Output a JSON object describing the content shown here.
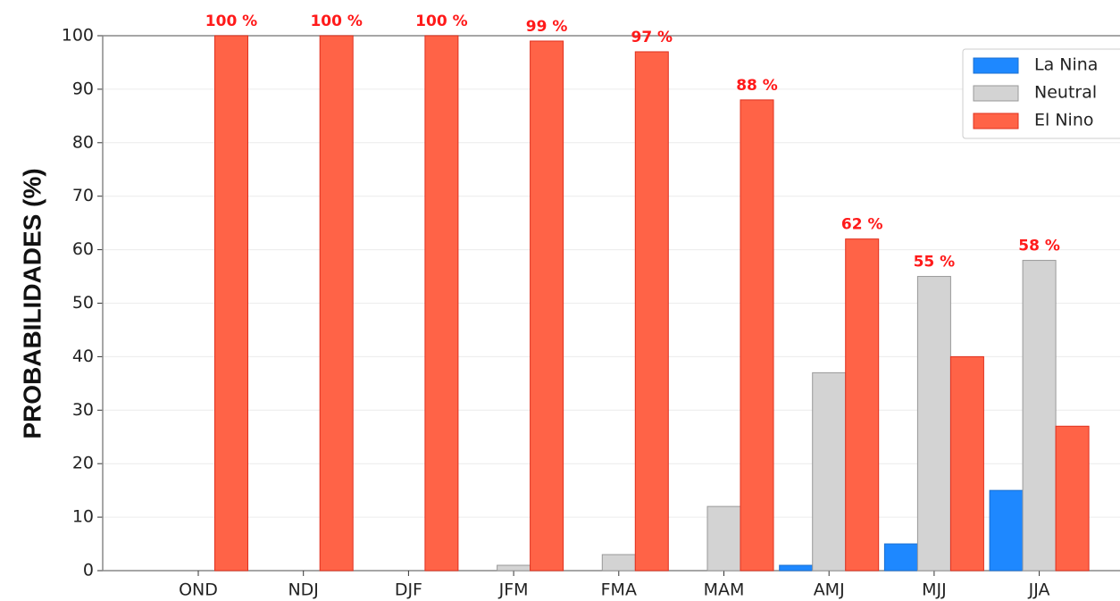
{
  "chart_data": {
    "type": "bar",
    "ylabel": "PROBABILIDADES (%)",
    "categories": [
      "OND",
      "NDJ",
      "DJF",
      "JFM",
      "FMA",
      "MAM",
      "AMJ",
      "MJJ",
      "JJA"
    ],
    "series": [
      {
        "name": "La Nina",
        "color": "#1e88ff",
        "values": [
          0,
          0,
          0,
          0,
          0,
          0,
          1,
          5,
          15
        ]
      },
      {
        "name": "Neutral",
        "color": "#d3d3d3",
        "values": [
          0,
          0,
          0,
          1,
          3,
          12,
          37,
          55,
          58
        ],
        "value_labels": [
          null,
          null,
          null,
          null,
          null,
          null,
          null,
          "55 %",
          "58 %"
        ]
      },
      {
        "name": "El Nino",
        "color": "#ff6347",
        "values": [
          100,
          100,
          100,
          99,
          97,
          88,
          62,
          40,
          27
        ],
        "value_labels": [
          "100 %",
          "100 %",
          "100 %",
          "99 %",
          "97 %",
          "88 %",
          "62 %",
          null,
          null
        ]
      }
    ],
    "ylim": [
      0,
      100
    ],
    "yticks": [
      0,
      10,
      20,
      30,
      40,
      50,
      60,
      70,
      80,
      90,
      100
    ],
    "grid": true,
    "legend": "upper right"
  }
}
